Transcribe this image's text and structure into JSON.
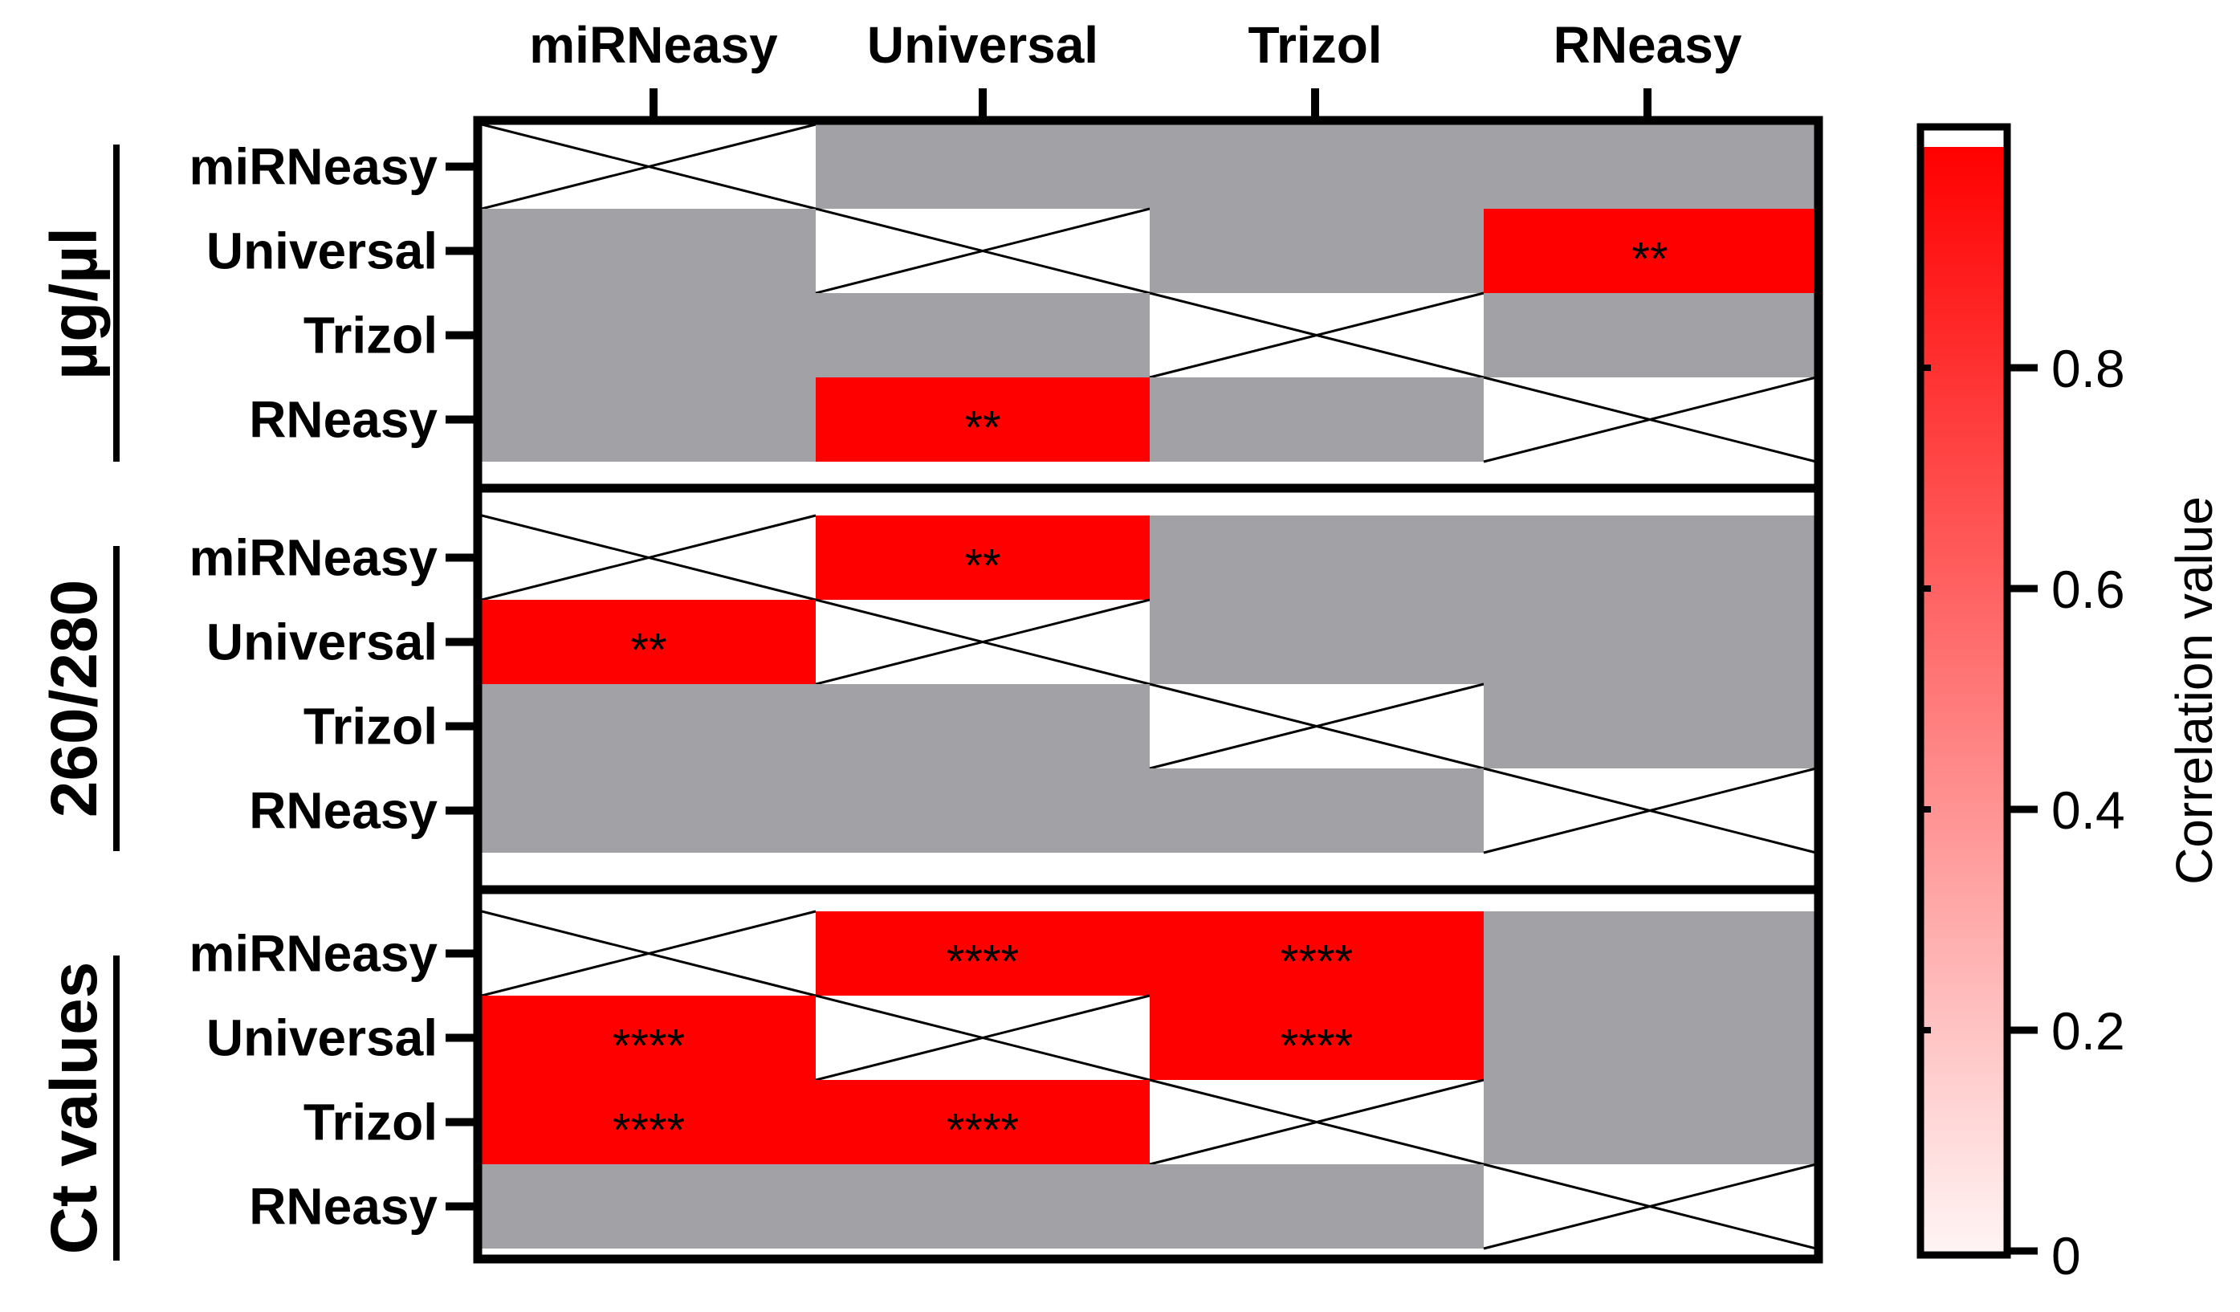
{
  "chart_data": {
    "type": "heatmap",
    "columns": [
      "miRNeasy",
      "Universal",
      "Trizol",
      "RNeasy"
    ],
    "rows": [
      "miRNeasy",
      "Universal",
      "Trizol",
      "RNeasy"
    ],
    "panels": [
      {
        "label": "µg/µl",
        "cells": [
          [
            "x",
            "",
            "",
            ""
          ],
          [
            "",
            "x",
            "",
            "**"
          ],
          [
            "",
            "",
            "x",
            ""
          ],
          [
            "",
            "**",
            "",
            "x"
          ]
        ]
      },
      {
        "label": "260/280",
        "cells": [
          [
            "x",
            "**",
            "",
            ""
          ],
          [
            "**",
            "x",
            "",
            ""
          ],
          [
            "",
            "",
            "x",
            ""
          ],
          [
            "",
            "",
            "",
            "x"
          ]
        ]
      },
      {
        "label": "Ct values",
        "cells": [
          [
            "x",
            "****",
            "****",
            ""
          ],
          [
            "****",
            "x",
            "****",
            ""
          ],
          [
            "****",
            "****",
            "x",
            ""
          ],
          [
            "",
            "",
            "",
            "x"
          ]
        ]
      }
    ],
    "legend": {
      "title": "Correlation value",
      "range": [
        0,
        1
      ],
      "ticks": [
        "0",
        "0.2",
        "0.4",
        "0.6",
        "0.8"
      ],
      "tick_values": [
        0,
        0.2,
        0.4,
        0.6,
        0.8
      ]
    },
    "colors": {
      "significant": "#ff0000",
      "not_significant": "#a1a1a6",
      "diagonal": "#ffffff",
      "legend_high": "#ff0000",
      "legend_low": "#ffffff"
    }
  }
}
